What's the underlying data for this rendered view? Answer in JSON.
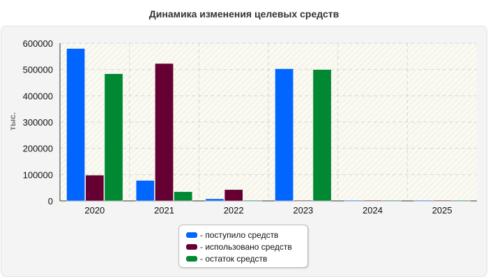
{
  "chart_data": {
    "type": "bar",
    "title": "Динамика изменения целевых средств",
    "ylabel": "тыс.",
    "xlabel": "",
    "categories": [
      "2020",
      "2021",
      "2022",
      "2023",
      "2024",
      "2025"
    ],
    "ylim": [
      0,
      600000
    ],
    "yticks": [
      0,
      100000,
      200000,
      300000,
      400000,
      500000,
      600000
    ],
    "ytick_labels": [
      "0",
      "100000",
      "200000",
      "300000",
      "400000",
      "500000",
      "600000"
    ],
    "grid": true,
    "legend_position": "bottom-center",
    "series": [
      {
        "name": "- поступило средств",
        "color": "#0066ff",
        "values": [
          580000,
          78000,
          8000,
          503000,
          2000,
          2000
        ]
      },
      {
        "name": "- использовано средств",
        "color": "#660033",
        "values": [
          98000,
          523000,
          43000,
          2000,
          2000,
          2000
        ]
      },
      {
        "name": "- остаток средств",
        "color": "#008833",
        "values": [
          484000,
          35000,
          2000,
          500000,
          2000,
          2000
        ]
      }
    ]
  }
}
